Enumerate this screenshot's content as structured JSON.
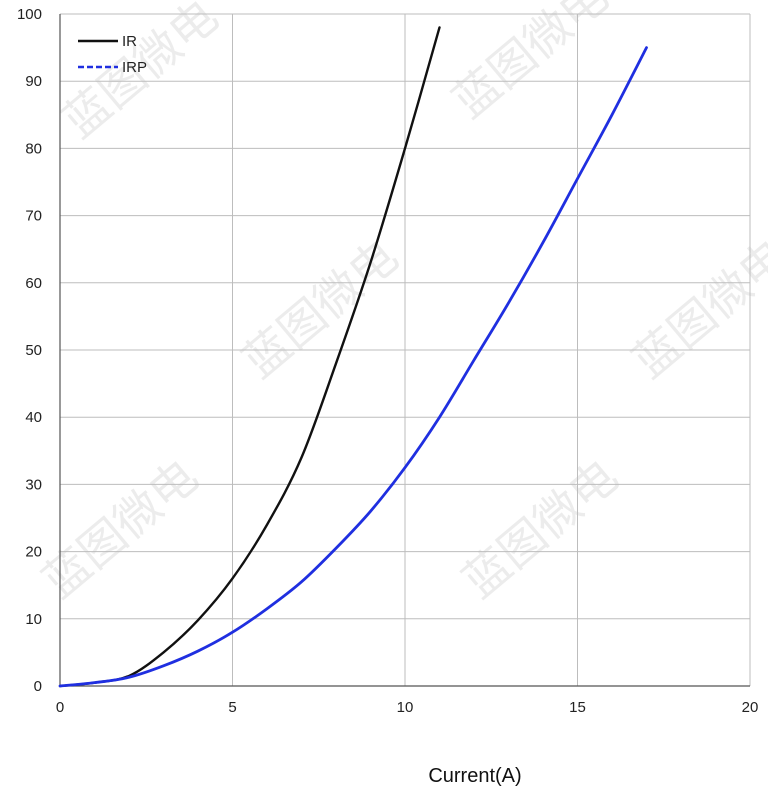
{
  "chart_data": {
    "type": "line",
    "title": "",
    "xlabel": "Current(A)",
    "ylabel": "",
    "xlim": [
      0,
      20
    ],
    "ylim": [
      0,
      100
    ],
    "x_ticks": [
      "0",
      "5",
      "10",
      "15",
      "20"
    ],
    "y_ticks": [
      "0",
      "10",
      "20",
      "30",
      "40",
      "50",
      "60",
      "70",
      "80",
      "90",
      "100"
    ],
    "grid": true,
    "legend_position": "top-left",
    "series": [
      {
        "name": "IR",
        "color": "#111111",
        "style": "solid",
        "x": [
          0,
          1,
          2,
          3,
          4,
          5,
          6,
          7,
          8,
          9,
          10,
          11
        ],
        "y": [
          0,
          0.5,
          1.5,
          5,
          9.8,
          16,
          24,
          34,
          48,
          63,
          80,
          98
        ]
      },
      {
        "name": "IRP",
        "color": "#1f2fe0",
        "style": "solid",
        "x": [
          0,
          1,
          2,
          3,
          4,
          5,
          6,
          7,
          8,
          9,
          10,
          11,
          12,
          13,
          14,
          15,
          16,
          17
        ],
        "y": [
          0,
          0.5,
          1.3,
          3,
          5.2,
          8,
          11.5,
          15.5,
          20.5,
          26,
          32.5,
          40,
          48.5,
          57,
          66,
          75.5,
          85,
          95
        ]
      }
    ]
  },
  "watermark": {
    "text": "蓝图微电"
  }
}
